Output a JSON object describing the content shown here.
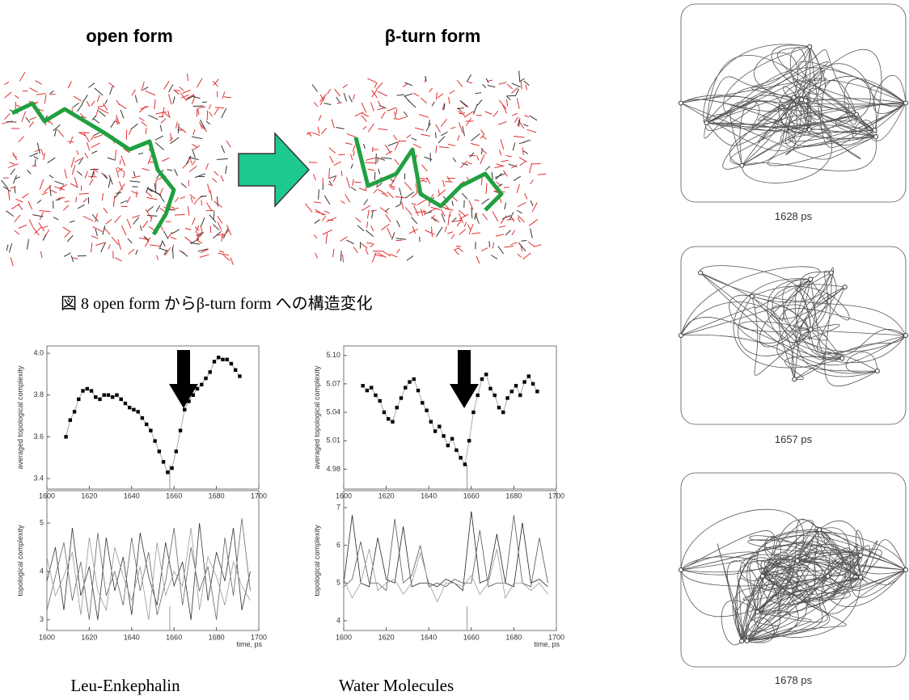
{
  "figure": {
    "open_label": "open form",
    "turn_label": "β-turn form",
    "caption": "図 8  open form からβ-turn form への構造変化"
  },
  "chart_data": [
    {
      "type": "line",
      "markers": true,
      "ylabel": "averaged topological complexity",
      "color": "#000000",
      "x": [
        1609,
        1611,
        1613,
        1615,
        1617,
        1619,
        1621,
        1623,
        1625,
        1627,
        1629,
        1631,
        1633,
        1635,
        1637,
        1639,
        1641,
        1643,
        1645,
        1647,
        1649,
        1651,
        1653,
        1655,
        1657,
        1659,
        1661,
        1663,
        1665,
        1667,
        1669,
        1671,
        1673,
        1675,
        1677,
        1679,
        1681,
        1683,
        1685,
        1687,
        1689,
        1691
      ],
      "values": [
        3.6,
        3.68,
        3.72,
        3.78,
        3.82,
        3.83,
        3.82,
        3.79,
        3.78,
        3.8,
        3.8,
        3.79,
        3.8,
        3.78,
        3.76,
        3.74,
        3.73,
        3.72,
        3.69,
        3.66,
        3.63,
        3.58,
        3.53,
        3.48,
        3.43,
        3.45,
        3.53,
        3.63,
        3.73,
        3.77,
        3.8,
        3.83,
        3.85,
        3.88,
        3.91,
        3.96,
        3.98,
        3.97,
        3.97,
        3.95,
        3.92,
        3.89
      ],
      "xlim": [
        1600,
        1700
      ],
      "xticks": [
        1600,
        1620,
        1640,
        1660,
        1680,
        1700
      ],
      "ylim": [
        3.35,
        4.035
      ],
      "yticks": [
        3.4,
        3.6,
        3.8,
        {
          "value": 4,
          "label": "4.0"
        }
      ],
      "vline": 1658
    },
    {
      "type": "line",
      "markers": false,
      "ylabel": "topological complexity",
      "xlabel": "time, ps",
      "x": [
        1600,
        1604,
        1608,
        1612,
        1616,
        1620,
        1624,
        1628,
        1632,
        1636,
        1640,
        1644,
        1648,
        1652,
        1656,
        1660,
        1664,
        1668,
        1672,
        1676,
        1680,
        1684,
        1688,
        1692,
        1696
      ],
      "series": [
        {
          "color": "#333333",
          "values": [
            3.8,
            4.5,
            3.2,
            4.9,
            3.5,
            4.1,
            3.0,
            4.7,
            3.6,
            4.3,
            3.1,
            4.8,
            3.9,
            3.3,
            4.6,
            3.7,
            4.2,
            3.0,
            5.0,
            3.4,
            4.4,
            3.8,
            4.9,
            3.2,
            4.0
          ]
        },
        {
          "color": "#666666",
          "values": [
            3.2,
            3.9,
            4.6,
            3.4,
            4.2,
            3.0,
            4.8,
            3.5,
            4.0,
            3.3,
            4.7,
            3.6,
            4.4,
            3.1,
            3.8,
            4.9,
            3.3,
            4.5,
            3.6,
            4.1,
            3.0,
            4.7,
            3.5,
            5.1,
            3.6
          ]
        },
        {
          "color": "#999999",
          "values": [
            4.3,
            3.5,
            3.9,
            4.4,
            3.1,
            4.7,
            3.6,
            3.2,
            4.5,
            3.9,
            3.4,
            4.1,
            3.0,
            4.6,
            3.5,
            4.0,
            3.7,
            4.9,
            3.2,
            4.3,
            3.9,
            3.3,
            4.2,
            3.7,
            3.4
          ]
        }
      ],
      "xlim": [
        1600,
        1700
      ],
      "xticks": [
        1600,
        1620,
        1640,
        1660,
        1680,
        1700
      ],
      "ylim": [
        2.78,
        5.67
      ],
      "yticks": [
        3,
        4,
        5
      ],
      "vline": 1658
    },
    {
      "type": "line",
      "markers": true,
      "ylabel": "averaged topological complexity",
      "color": "#000000",
      "x": [
        1609,
        1611,
        1613,
        1615,
        1617,
        1619,
        1621,
        1623,
        1625,
        1627,
        1629,
        1631,
        1633,
        1635,
        1637,
        1639,
        1641,
        1643,
        1645,
        1647,
        1649,
        1651,
        1653,
        1655,
        1657,
        1659,
        1661,
        1663,
        1665,
        1667,
        1669,
        1671,
        1673,
        1675,
        1677,
        1679,
        1681,
        1683,
        1685,
        1687,
        1689,
        1691
      ],
      "values": [
        5.068,
        5.063,
        5.066,
        5.058,
        5.052,
        5.04,
        5.033,
        5.03,
        5.045,
        5.055,
        5.066,
        5.072,
        5.075,
        5.063,
        5.05,
        5.042,
        5.03,
        5.02,
        5.025,
        5.015,
        5.005,
        5.012,
        5.0,
        4.992,
        4.985,
        5.01,
        5.04,
        5.058,
        5.075,
        5.08,
        5.065,
        5.058,
        5.045,
        5.04,
        5.055,
        5.062,
        5.068,
        5.058,
        5.072,
        5.078,
        5.07,
        5.062
      ],
      "xlim": [
        1600,
        1700
      ],
      "xticks": [
        1600,
        1620,
        1640,
        1660,
        1680,
        1700
      ],
      "ylim": [
        4.959,
        5.11
      ],
      "yticks": [
        4.98,
        5.01,
        5.04,
        5.07,
        {
          "value": 5.1,
          "label": "5.10"
        }
      ],
      "vline": 1658
    },
    {
      "type": "line",
      "markers": false,
      "ylabel": "topological complexity",
      "xlabel": "time, ps",
      "x": [
        1600,
        1604,
        1608,
        1612,
        1616,
        1620,
        1624,
        1628,
        1632,
        1636,
        1640,
        1644,
        1648,
        1652,
        1656,
        1660,
        1664,
        1668,
        1672,
        1676,
        1680,
        1684,
        1688,
        1692,
        1696
      ],
      "series": [
        {
          "color": "#222222",
          "values": [
            5.0,
            6.8,
            5.0,
            4.9,
            6.2,
            5.1,
            5.0,
            6.5,
            4.9,
            5.0,
            5.0,
            4.9,
            5.1,
            5.0,
            4.8,
            6.9,
            5.0,
            5.1,
            6.3,
            5.0,
            4.9,
            6.6,
            5.0,
            5.1,
            4.9
          ]
        },
        {
          "color": "#555555",
          "values": [
            4.9,
            5.1,
            6.1,
            5.0,
            5.0,
            4.8,
            6.7,
            5.0,
            5.2,
            6.0,
            4.9,
            5.0,
            4.9,
            5.1,
            5.0,
            5.0,
            6.4,
            4.9,
            5.0,
            5.0,
            6.8,
            5.0,
            4.9,
            6.2,
            5.0
          ]
        },
        {
          "color": "#999999",
          "values": [
            5.1,
            4.6,
            5.0,
            5.9,
            4.8,
            5.0,
            5.1,
            4.7,
            5.0,
            5.8,
            5.0,
            4.5,
            5.0,
            5.0,
            4.9,
            5.2,
            4.7,
            5.0,
            5.9,
            4.6,
            5.0,
            5.0,
            4.8,
            5.0,
            4.7
          ]
        }
      ],
      "xlim": [
        1600,
        1700
      ],
      "xticks": [
        1600,
        1620,
        1640,
        1660,
        1680,
        1700
      ],
      "ylim": [
        3.74,
        7.45
      ],
      "yticks": [
        4,
        5,
        6,
        7
      ],
      "vline": 1658
    }
  ],
  "captions": [
    "Leu-Enkephalin",
    "Water Molecules"
  ],
  "snapshots": [
    {
      "label": "1628 ps"
    },
    {
      "label": "1657 ps"
    },
    {
      "label": "1678 ps"
    }
  ]
}
